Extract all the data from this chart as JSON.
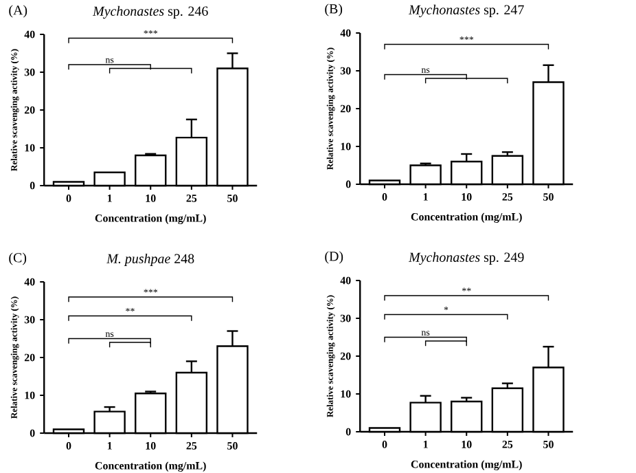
{
  "chart_data": [
    {
      "type": "bar",
      "title": "*Mychonastes* sp. 246",
      "xlabel": "Concentration (mg/mL)",
      "ylabel": "Relative scavenging activity (%)",
      "categories": [
        "0",
        "1",
        "10",
        "25",
        "50"
      ],
      "values": [
        1,
        3.5,
        8,
        12.7,
        31
      ],
      "errors": [
        null,
        null,
        0.4,
        4.8,
        4
      ],
      "color": "#ffffff",
      "ylim": [
        0,
        40
      ],
      "yticks": [
        0,
        10,
        20,
        30,
        40
      ],
      "annotations": [
        "(A)",
        "***",
        "ns"
      ]
    },
    {
      "type": "bar",
      "title": "*Mychonastes* sp. 247",
      "xlabel": "Concentration (mg/mL)",
      "ylabel": "Relative scavenging activity (%)",
      "categories": [
        "0",
        "1",
        "10",
        "25",
        "50"
      ],
      "values": [
        1,
        5,
        6,
        7.5,
        27
      ],
      "errors": [
        null,
        0.5,
        2,
        1,
        4.5
      ],
      "color": "#ffffff",
      "ylim": [
        0,
        40
      ],
      "yticks": [
        0,
        10,
        20,
        30,
        40
      ],
      "annotations": [
        "(B)",
        "***",
        "ns"
      ]
    },
    {
      "type": "bar",
      "title": "*M. pushpae* 248",
      "xlabel": "Concentration (mg/mL)",
      "ylabel": "Relative scavenging activity (%)",
      "categories": [
        "0",
        "1",
        "10",
        "25",
        "50"
      ],
      "values": [
        1,
        5.7,
        10.5,
        16,
        23
      ],
      "errors": [
        null,
        1.2,
        0.5,
        3,
        4
      ],
      "color": "#ffffff",
      "ylim": [
        0,
        40
      ],
      "yticks": [
        0,
        10,
        20,
        30,
        40
      ],
      "annotations": [
        "(C)",
        "***",
        "**",
        "ns"
      ]
    },
    {
      "type": "bar",
      "title": "*Mychonastes* sp. 249",
      "xlabel": "Concentration (mg/mL)",
      "ylabel": "Relative scavenging activity (%)",
      "categories": [
        "0",
        "1",
        "10",
        "25",
        "50"
      ],
      "values": [
        1,
        7.7,
        8,
        11.5,
        17
      ],
      "errors": [
        null,
        1.8,
        1,
        1.3,
        5.5
      ],
      "color": "#ffffff",
      "ylim": [
        0,
        40
      ],
      "yticks": [
        0,
        10,
        20,
        30,
        40
      ],
      "annotations": [
        "(D)",
        "**",
        "*",
        "ns"
      ]
    }
  ]
}
